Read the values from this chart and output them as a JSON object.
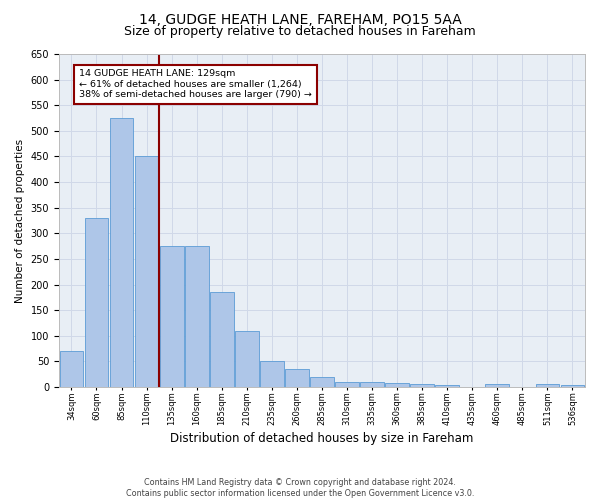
{
  "title1": "14, GUDGE HEATH LANE, FAREHAM, PO15 5AA",
  "title2": "Size of property relative to detached houses in Fareham",
  "xlabel": "Distribution of detached houses by size in Fareham",
  "ylabel": "Number of detached properties",
  "footer1": "Contains HM Land Registry data © Crown copyright and database right 2024.",
  "footer2": "Contains public sector information licensed under the Open Government Licence v3.0.",
  "annotation_line1": "14 GUDGE HEATH LANE: 129sqm",
  "annotation_line2": "← 61% of detached houses are smaller (1,264)",
  "annotation_line3": "38% of semi-detached houses are larger (790) →",
  "bar_heights": [
    70,
    330,
    525,
    450,
    275,
    275,
    185,
    110,
    50,
    35,
    20,
    10,
    10,
    7,
    5,
    3,
    0,
    5,
    0,
    5,
    3
  ],
  "vline_index": 4,
  "bar_color": "#aec6e8",
  "bar_edge_color": "#5b9bd5",
  "vline_color": "#8b0000",
  "annotation_box_color": "#8b0000",
  "grid_color": "#d0d8e8",
  "bg_color": "#e8eef5",
  "ylim": [
    0,
    650
  ],
  "yticks": [
    0,
    50,
    100,
    150,
    200,
    250,
    300,
    350,
    400,
    450,
    500,
    550,
    600,
    650
  ],
  "title1_fontsize": 10,
  "title2_fontsize": 9,
  "xlabel_fontsize": 8.5,
  "ylabel_fontsize": 7.5,
  "tick_label_fontsize": 6.0,
  "tick_labels": [
    "34sqm",
    "60sqm",
    "85sqm",
    "110sqm",
    "135sqm",
    "160sqm",
    "185sqm",
    "210sqm",
    "235sqm",
    "260sqm",
    "285sqm",
    "310sqm",
    "335sqm",
    "360sqm",
    "385sqm",
    "410sqm",
    "435sqm",
    "460sqm",
    "485sqm",
    "511sqm",
    "536sqm"
  ]
}
